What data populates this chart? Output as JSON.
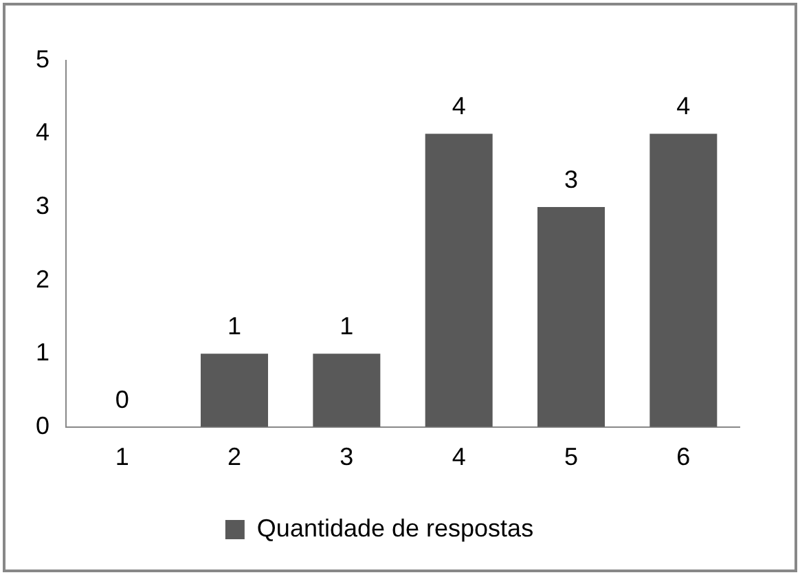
{
  "chart_data": {
    "type": "bar",
    "categories": [
      "1",
      "2",
      "3",
      "4",
      "5",
      "6"
    ],
    "series": [
      {
        "name": "Quantidade de respostas",
        "color": "#595959",
        "values": [
          0,
          1,
          1,
          4,
          3,
          4
        ]
      }
    ],
    "ylim": [
      0,
      5
    ],
    "yticks": [
      0,
      1,
      2,
      3,
      4,
      5
    ],
    "grid": false,
    "legend": "bottom",
    "data_labels": true
  }
}
